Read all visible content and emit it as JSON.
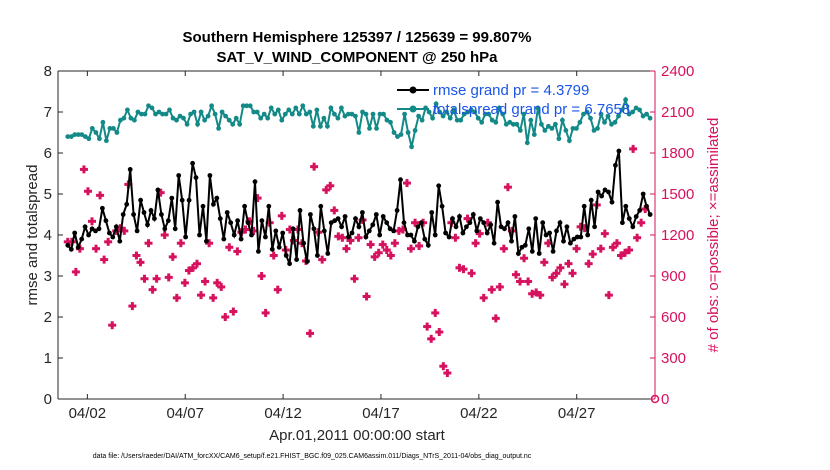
{
  "chart_data": {
    "type": "line",
    "title": "Southern Hemisphere 125397 / 125639 = 99.807%",
    "subtitle": "SAT_V_WIND_COMPONENT @ 250 hPa",
    "xlabel": "Apr.01,2011 00:00:00 start",
    "ylabel": "rmse and totalspread",
    "ylabel_right": "# of obs: o=possible; ×=assimilated",
    "x_ticks": [
      "04/02",
      "04/07",
      "04/12",
      "04/17",
      "04/22",
      "04/27"
    ],
    "y_ticks": [
      "0",
      "1",
      "2",
      "3",
      "4",
      "5",
      "6",
      "7",
      "8"
    ],
    "y2_ticks": [
      "0",
      "300",
      "600",
      "900",
      "1200",
      "1500",
      "1800",
      "2100",
      "2400"
    ],
    "xlim": [
      0.5,
      31
    ],
    "ylim": [
      0,
      8
    ],
    "y2lim": [
      0,
      2400
    ],
    "grid": false,
    "legend_position": "top-right",
    "x_step_days": 0.25,
    "footer": "data file: /Users/raeder/DAI/ATM_forcXX/CAM6_setup/f.e21.FHIST_BGC.f09_025.CAM6assim.011/Diags_NTrS_2011-04/obs_diag_output.nc",
    "series": [
      {
        "name": "rmse grand pr = 4.3799",
        "color": "#000000",
        "values": [
          3.75,
          3.65,
          4.05,
          3.7,
          3.9,
          4.2,
          4.0,
          4.15,
          4.1,
          4.15,
          4.65,
          4.35,
          4.05,
          3.95,
          4.2,
          3.85,
          4.5,
          4.75,
          5.6,
          4.5,
          4.1,
          4.85,
          4.55,
          4.25,
          4.6,
          4.4,
          5.1,
          4.5,
          4.15,
          4.35,
          4.9,
          4.15,
          5.45,
          4.85,
          3.95,
          4.85,
          5.75,
          5.4,
          4.0,
          4.7,
          3.85,
          5.45,
          4.75,
          4.9,
          4.4,
          3.9,
          4.55,
          4.3,
          4.0,
          4.35,
          3.9,
          4.7,
          4.3,
          4.0,
          5.3,
          3.6,
          4.35,
          3.95,
          4.7,
          3.65,
          4.1,
          3.7,
          4.05,
          3.5,
          3.3,
          4.15,
          3.4,
          4.6,
          3.8,
          3.35,
          4.5,
          4.15,
          3.5,
          4.7,
          4.1,
          3.55,
          4.3,
          4.35,
          4.4,
          4.2,
          4.45,
          3.95,
          4.05,
          4.4,
          4.2,
          4.55,
          3.95,
          4.1,
          4.25,
          4.5,
          4.0,
          4.45,
          4.3,
          4.15,
          4.1,
          4.6,
          5.35,
          4.3,
          4.0,
          4.0,
          3.85,
          4.2,
          4.3,
          3.9,
          3.75,
          4.55,
          4.0,
          5.2,
          4.7,
          4.05,
          3.95,
          4.4,
          4.2,
          4.45,
          4.05,
          4.2,
          4.3,
          4.5,
          4.1,
          4.4,
          4.3,
          4.05,
          4.25,
          3.8,
          4.8,
          4.2,
          4.15,
          4.3,
          3.85,
          4.45,
          3.55,
          3.7,
          3.75,
          4.15,
          3.6,
          4.4,
          3.55,
          4.3,
          4.0,
          4.05,
          3.6,
          4.1,
          4.3,
          3.85,
          4.2,
          3.8,
          3.9,
          3.95,
          3.95,
          4.7,
          4.0,
          4.85,
          4.2,
          5.05,
          4.95,
          5.1,
          5.05,
          4.8,
          5.7,
          6.05,
          4.3,
          4.7,
          4.4,
          4.2,
          4.45,
          4.6,
          5.0,
          4.7,
          4.5
        ]
      },
      {
        "name": "totalspread grand pr = 6.7658",
        "color": "#138a88",
        "values": [
          6.4,
          6.4,
          6.45,
          6.45,
          6.45,
          6.4,
          6.35,
          6.6,
          6.5,
          6.35,
          6.75,
          6.3,
          6.6,
          6.6,
          6.5,
          6.8,
          6.85,
          7.05,
          6.85,
          6.8,
          7.0,
          6.95,
          6.95,
          7.15,
          7.1,
          6.95,
          7.0,
          6.95,
          6.95,
          7.05,
          6.85,
          6.8,
          6.9,
          6.85,
          6.7,
          6.95,
          7.0,
          6.7,
          7.0,
          6.8,
          6.9,
          7.15,
          6.95,
          6.6,
          7.0,
          6.9,
          6.8,
          6.7,
          6.85,
          6.7,
          7.15,
          7.15,
          7.15,
          7.0,
          7.0,
          6.85,
          6.95,
          6.85,
          7.1,
          6.95,
          7.05,
          6.8,
          6.95,
          7.05,
          6.95,
          7.1,
          6.95,
          7.15,
          6.95,
          7.0,
          6.65,
          7.05,
          6.65,
          6.85,
          6.65,
          7.1,
          6.95,
          6.85,
          7.1,
          6.9,
          6.95,
          6.95,
          6.9,
          6.5,
          7.0,
          6.95,
          6.6,
          6.95,
          6.6,
          6.95,
          6.95,
          6.8,
          6.75,
          6.5,
          6.4,
          6.45,
          6.95,
          6.5,
          6.15,
          6.55,
          6.9,
          6.8,
          7.1,
          7.0,
          6.85,
          7.2,
          7.0,
          6.9,
          7.0,
          6.85,
          7.05,
          6.8,
          6.8,
          6.95,
          7.0,
          7.05,
          7.0,
          6.85,
          6.75,
          6.95,
          6.95,
          6.8,
          6.75,
          7.1,
          6.95,
          6.7,
          6.75,
          6.7,
          6.7,
          6.55,
          6.95,
          6.25,
          6.8,
          6.45,
          7.1,
          6.7,
          6.55,
          6.65,
          6.6,
          6.7,
          6.35,
          6.8,
          6.55,
          6.3,
          6.6,
          6.6,
          6.75,
          6.95,
          7.0,
          6.85,
          6.55,
          6.6,
          6.95,
          6.75,
          6.9,
          6.7,
          6.75,
          6.9,
          7.05,
          7.3,
          6.95,
          7.0,
          7.1,
          7.05,
          6.9,
          6.95,
          6.85
        ]
      },
      {
        "name": "assimilated obs",
        "marker": "plus",
        "color": "#d6125e",
        "values": [
          1150,
          1150,
          930,
          1100,
          1680,
          1520,
          1300,
          1100,
          1490,
          1020,
          1150,
          540,
          1230,
          1250,
          1230,
          1570,
          680,
          1050,
          1000,
          880,
          1140,
          800,
          880,
          1510,
          1200,
          890,
          1040,
          740,
          1140,
          850,
          940,
          960,
          990,
          760,
          860,
          1140,
          740,
          850,
          820,
          600,
          1110,
          640,
          1080,
          1220,
          1240,
          1300,
          1230,
          1470,
          900,
          630,
          1290,
          1050,
          800,
          1340,
          1090,
          1240,
          1160,
          1240,
          1140,
          1010,
          480,
          1700,
          1220,
          1020,
          1530,
          1560,
          1380,
          1190,
          1180,
          1100,
          1160,
          880,
          1180,
          1310,
          750,
          1130,
          1040,
          1070,
          1130,
          1090,
          1050,
          1140,
          1230,
          1240,
          1580,
          1100,
          1290,
          1120,
          1290,
          530,
          440,
          630,
          490,
          240,
          190,
          1290,
          1180,
          960,
          950,
          1320,
          920,
          1140,
          1210,
          740,
          1290,
          800,
          590,
          820,
          1100,
          1550,
          1230,
          910,
          860,
          1030,
          860,
          770,
          780,
          760,
          1000,
          1140,
          890,
          920,
          960,
          840,
          990,
          920,
          1100,
          1260,
          1250,
          990,
          1060,
          1420,
          1100,
          1210,
          760,
          1110,
          1140,
          1050,
          1070,
          1090,
          1830,
          1180,
          1290,
          1390
        ]
      }
    ]
  }
}
